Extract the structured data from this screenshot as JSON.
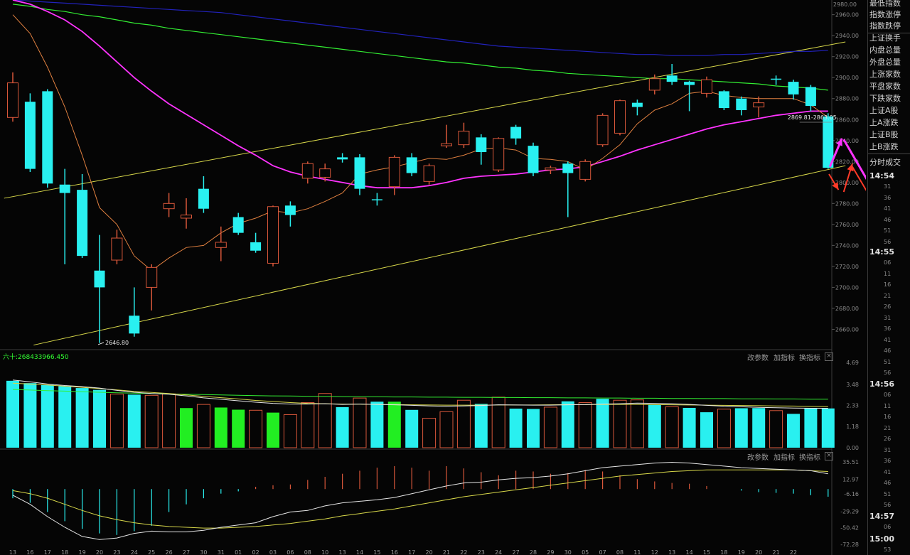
{
  "colors": {
    "up": "#d8573a",
    "down": "#29f0f0",
    "flat": "#29f0f0",
    "ma5": "#e08040",
    "ma10": "#ff33ff",
    "ma60": "#33ee33",
    "ma120": "#2222bb",
    "channel": "#d8d84a",
    "vol_green": "#22ee22",
    "arrow_magenta": "#ff33ff",
    "arrow_red": "#ff3a28"
  },
  "chart_data": [
    {
      "type": "candlestick",
      "panel": "price",
      "ylim": [
        2642,
        2974
      ],
      "y_ticks": [
        2960,
        2940,
        2920,
        2900,
        2880,
        2860,
        2840,
        2820,
        2800,
        2780,
        2760,
        2740,
        2720,
        2700,
        2680,
        2660
      ],
      "y_tick_labels": [
        "2960.00",
        "2940.00",
        "2920.00",
        "2900.00",
        "2880.00",
        "2860.00",
        "2840.00",
        "2820.00",
        "2800.00",
        "2780.00",
        "2760.00",
        "2740.00",
        "2720.00",
        "2700.00",
        "2680.00",
        "2660.00"
      ],
      "top_label": "2980.00",
      "x_labels": [
        "13",
        "16",
        "17",
        "18",
        "19",
        "20",
        "23",
        "24",
        "25",
        "26",
        "27",
        "30",
        "31",
        "01",
        "02",
        "03",
        "06",
        "08",
        "10",
        "13",
        "14",
        "15",
        "16",
        "17",
        "20",
        "21",
        "22",
        "23",
        "24",
        "27",
        "28",
        "29",
        "30",
        "05",
        "07",
        "08",
        "11",
        "12",
        "13",
        "14",
        "15",
        "18",
        "19",
        "20",
        "21",
        "22"
      ],
      "candles": [
        {
          "o": 2862,
          "c": 2895,
          "h": 2905,
          "l": 2858
        },
        {
          "o": 2877,
          "c": 2813,
          "h": 2885,
          "l": 2810
        },
        {
          "o": 2887,
          "c": 2799,
          "h": 2889,
          "l": 2795
        },
        {
          "o": 2798,
          "c": 2790,
          "h": 2813,
          "l": 2722
        },
        {
          "o": 2793,
          "c": 2730,
          "h": 2808,
          "l": 2728
        },
        {
          "o": 2716,
          "c": 2700,
          "h": 2750,
          "l": 2647
        },
        {
          "o": 2726,
          "c": 2747,
          "h": 2755,
          "l": 2722
        },
        {
          "o": 2673,
          "c": 2656,
          "h": 2700,
          "l": 2653
        },
        {
          "o": 2700,
          "c": 2719,
          "h": 2722,
          "l": 2678
        },
        {
          "o": 2775,
          "c": 2780,
          "h": 2790,
          "l": 2767
        },
        {
          "o": 2766,
          "c": 2769,
          "h": 2785,
          "l": 2756
        },
        {
          "o": 2794,
          "c": 2775,
          "h": 2806,
          "l": 2771
        },
        {
          "o": 2738,
          "c": 2743,
          "h": 2758,
          "l": 2725
        },
        {
          "o": 2767,
          "c": 2752,
          "h": 2771,
          "l": 2750
        },
        {
          "o": 2743,
          "c": 2735,
          "h": 2752,
          "l": 2733
        },
        {
          "o": 2723,
          "c": 2777,
          "h": 2778,
          "l": 2720
        },
        {
          "o": 2778,
          "c": 2769,
          "h": 2782,
          "l": 2758
        },
        {
          "o": 2804,
          "c": 2818,
          "h": 2820,
          "l": 2799
        },
        {
          "o": 2805,
          "c": 2813,
          "h": 2818,
          "l": 2801
        },
        {
          "o": 2824,
          "c": 2822,
          "h": 2828,
          "l": 2819
        },
        {
          "o": 2824,
          "c": 2794,
          "h": 2827,
          "l": 2788
        },
        {
          "o": 2784,
          "c": 2783,
          "h": 2790,
          "l": 2778
        },
        {
          "o": 2796,
          "c": 2824,
          "h": 2826,
          "l": 2788
        },
        {
          "o": 2824,
          "c": 2809,
          "h": 2828,
          "l": 2806
        },
        {
          "o": 2801,
          "c": 2816,
          "h": 2818,
          "l": 2798
        },
        {
          "o": 2835,
          "c": 2837,
          "h": 2855,
          "l": 2833
        },
        {
          "o": 2836,
          "c": 2849,
          "h": 2857,
          "l": 2833
        },
        {
          "o": 2843,
          "c": 2829,
          "h": 2846,
          "l": 2817
        },
        {
          "o": 2812,
          "c": 2842,
          "h": 2843,
          "l": 2810
        },
        {
          "o": 2853,
          "c": 2842,
          "h": 2855,
          "l": 2836
        },
        {
          "o": 2835,
          "c": 2809,
          "h": 2838,
          "l": 2806
        },
        {
          "o": 2812,
          "c": 2814,
          "h": 2816,
          "l": 2808
        },
        {
          "o": 2818,
          "c": 2809,
          "h": 2820,
          "l": 2767
        },
        {
          "o": 2803,
          "c": 2820,
          "h": 2822,
          "l": 2801
        },
        {
          "o": 2836,
          "c": 2864,
          "h": 2866,
          "l": 2834
        },
        {
          "o": 2847,
          "c": 2878,
          "h": 2879,
          "l": 2845
        },
        {
          "o": 2876,
          "c": 2872,
          "h": 2879,
          "l": 2864
        },
        {
          "o": 2888,
          "c": 2899,
          "h": 2903,
          "l": 2884
        },
        {
          "o": 2902,
          "c": 2896,
          "h": 2913,
          "l": 2893
        },
        {
          "o": 2896,
          "c": 2893,
          "h": 2897,
          "l": 2868
        },
        {
          "o": 2885,
          "c": 2898,
          "h": 2901,
          "l": 2881
        },
        {
          "o": 2887,
          "c": 2871,
          "h": 2888,
          "l": 2869
        },
        {
          "o": 2880,
          "c": 2869,
          "h": 2882,
          "l": 2864
        },
        {
          "o": 2872,
          "c": 2876,
          "h": 2882,
          "l": 2862
        },
        {
          "o": 2899,
          "c": 2899,
          "h": 2902,
          "l": 2893
        },
        {
          "o": 2896,
          "c": 2884,
          "h": 2898,
          "l": 2879
        },
        {
          "o": 2891,
          "c": 2873,
          "h": 2893,
          "l": 2868
        },
        {
          "o": 2863,
          "c": 2814,
          "h": 2866,
          "l": 2813
        }
      ],
      "ma5": [
        2960,
        2942,
        2910,
        2872,
        2826,
        2776,
        2760,
        2730,
        2716,
        2728,
        2738,
        2740,
        2752,
        2761,
        2766,
        2773,
        2771,
        2775,
        2782,
        2790,
        2808,
        2812,
        2815,
        2819,
        2823,
        2822,
        2826,
        2832,
        2833,
        2831,
        2823,
        2822,
        2820,
        2812,
        2823,
        2836,
        2856,
        2869,
        2875,
        2885,
        2887,
        2883,
        2881,
        2880,
        2880,
        2880,
        2874,
        2862
      ],
      "ma10": [
        2974,
        2970,
        2963,
        2955,
        2944,
        2930,
        2915,
        2900,
        2887,
        2875,
        2865,
        2855,
        2845,
        2835,
        2826,
        2816,
        2810,
        2806,
        2803,
        2800,
        2797,
        2795,
        2795,
        2795,
        2797,
        2800,
        2804,
        2806,
        2807,
        2808,
        2810,
        2812,
        2813,
        2815,
        2820,
        2825,
        2831,
        2836,
        2841,
        2846,
        2851,
        2855,
        2858,
        2861,
        2864,
        2866,
        2868,
        2868
      ],
      "ma60": [
        2970,
        2968,
        2965,
        2963,
        2960,
        2958,
        2955,
        2952,
        2950,
        2947,
        2945,
        2943,
        2941,
        2939,
        2937,
        2935,
        2933,
        2931,
        2929,
        2927,
        2925,
        2923,
        2921,
        2919,
        2917,
        2915,
        2914,
        2912,
        2910,
        2909,
        2907,
        2906,
        2904,
        2903,
        2902,
        2901,
        2900,
        2899,
        2899,
        2898,
        2897,
        2896,
        2895,
        2894,
        2892,
        2891,
        2890,
        2888
      ],
      "ma120": [
        2974,
        2973,
        2972,
        2971,
        2970,
        2969,
        2968,
        2967,
        2966,
        2965,
        2964,
        2963,
        2962,
        2960,
        2958,
        2956,
        2954,
        2952,
        2950,
        2948,
        2946,
        2944,
        2942,
        2940,
        2938,
        2936,
        2934,
        2932,
        2930,
        2929,
        2928,
        2927,
        2926,
        2925,
        2924,
        2923,
        2922,
        2922,
        2921,
        2921,
        2921,
        2922,
        2922,
        2923,
        2924,
        2925,
        2925,
        2926
      ],
      "channel_upper": [
        [
          -0.5,
          2785
        ],
        [
          48,
          2934
        ]
      ],
      "channel_lower": [
        [
          1.2,
          2645
        ],
        [
          48,
          2816
        ]
      ],
      "low_marker": {
        "index": 5,
        "value": 2646.8,
        "label": "2646.80"
      },
      "high_marker": {
        "index": 47,
        "label": "2869.81-2863.05"
      },
      "arrows_magenta": [
        [
          [
            47.1,
            2815
          ],
          [
            47.8,
            2842
          ]
        ],
        [
          [
            47.9,
            2841
          ],
          [
            49.9,
            2784
          ]
        ]
      ],
      "arrows_red": [
        [
          [
            47.05,
            2808
          ],
          [
            47.6,
            2793
          ]
        ],
        [
          [
            47.9,
            2791
          ],
          [
            48.4,
            2818
          ]
        ],
        [
          [
            48.4,
            2815
          ],
          [
            50.0,
            2770
          ]
        ]
      ]
    },
    {
      "type": "bar",
      "panel": "volume",
      "header": "六十:268433966.450",
      "ylim": [
        0,
        4.69
      ],
      "y_tick_labels": [
        "4.69",
        "3.48",
        "2.33",
        "1.18",
        "0.00"
      ],
      "values": [
        3.68,
        3.55,
        3.45,
        3.38,
        3.28,
        3.18,
        2.95,
        2.92,
        2.88,
        2.96,
        2.18,
        2.38,
        2.21,
        2.09,
        2.06,
        1.93,
        1.82,
        2.48,
        2.98,
        2.23,
        2.73,
        2.53,
        2.53,
        2.08,
        1.62,
        1.98,
        2.61,
        2.41,
        2.78,
        2.15,
        2.13,
        2.23,
        2.55,
        2.48,
        2.69,
        2.61,
        2.63,
        2.37,
        2.25,
        2.19,
        1.95,
        2.12,
        2.17,
        2.18,
        2.04,
        1.86,
        2.18,
        2.16
      ],
      "colors": [
        "down",
        "down",
        "down",
        "down",
        "down",
        "down",
        "up",
        "down",
        "up",
        "up",
        "green",
        "up",
        "green",
        "green",
        "up",
        "green",
        "up",
        "up",
        "up",
        "down",
        "up",
        "down",
        "green",
        "down",
        "up",
        "up",
        "up",
        "down",
        "up",
        "down",
        "down",
        "up",
        "down",
        "up",
        "down",
        "up",
        "up",
        "down",
        "up",
        "down",
        "down",
        "up",
        "down",
        "down",
        "up",
        "down",
        "down",
        "down"
      ],
      "lines": {
        "white": [
          3.72,
          3.62,
          3.5,
          3.42,
          3.36,
          3.28,
          3.15,
          3.05,
          2.98,
          2.94,
          2.85,
          2.74,
          2.66,
          2.58,
          2.5,
          2.44,
          2.4,
          2.4,
          2.42,
          2.38,
          2.4,
          2.38,
          2.36,
          2.33,
          2.3,
          2.28,
          2.3,
          2.32,
          2.36,
          2.35,
          2.34,
          2.34,
          2.36,
          2.37,
          2.4,
          2.42,
          2.45,
          2.44,
          2.42,
          2.38,
          2.33,
          2.28,
          2.25,
          2.22,
          2.2,
          2.18,
          2.17,
          2.17
        ],
        "yellow": [
          3.55,
          3.5,
          3.45,
          3.38,
          3.32,
          3.25,
          3.18,
          3.1,
          3.04,
          2.98,
          2.9,
          2.82,
          2.75,
          2.68,
          2.6,
          2.54,
          2.48,
          2.44,
          2.42,
          2.4,
          2.39,
          2.38,
          2.37,
          2.36,
          2.35,
          2.34,
          2.34,
          2.34,
          2.35,
          2.35,
          2.35,
          2.36,
          2.37,
          2.37,
          2.38,
          2.38,
          2.38,
          2.37,
          2.36,
          2.35,
          2.34,
          2.33,
          2.32,
          2.31,
          2.3,
          2.29,
          2.27,
          2.26
        ],
        "green": [
          3.2,
          3.17,
          3.14,
          3.11,
          3.08,
          3.05,
          3.02,
          3.0,
          2.98,
          2.96,
          2.94,
          2.92,
          2.9,
          2.88,
          2.86,
          2.85,
          2.84,
          2.83,
          2.82,
          2.81,
          2.8,
          2.8,
          2.79,
          2.79,
          2.78,
          2.78,
          2.77,
          2.77,
          2.76,
          2.76,
          2.75,
          2.75,
          2.74,
          2.74,
          2.73,
          2.73,
          2.72,
          2.72,
          2.71,
          2.71,
          2.7,
          2.7,
          2.69,
          2.69,
          2.68,
          2.68,
          2.67,
          2.67
        ]
      }
    },
    {
      "type": "macd",
      "panel": "macd",
      "ylim": [
        -72.28,
        35.51
      ],
      "y_tick_labels": [
        "35.51",
        "12.97",
        "-6.16",
        "-29.29",
        "-50.42",
        "-72.28"
      ],
      "hist": [
        -12,
        -18,
        -30,
        -42,
        -52,
        -58,
        -60,
        -55,
        -48,
        -30,
        -20,
        -12,
        -6,
        -3,
        3,
        5,
        6,
        12,
        16,
        20,
        24,
        28,
        30,
        28,
        24,
        30,
        27,
        22,
        18,
        24,
        23,
        20,
        21,
        25,
        23,
        18,
        13,
        10,
        8,
        7,
        4,
        0,
        -2,
        -4,
        -5,
        -6,
        -8,
        -10
      ],
      "dif": [
        -8,
        -20,
        -36,
        -50,
        -62,
        -66,
        -64,
        -58,
        -55,
        -56,
        -56,
        -54,
        -50,
        -47,
        -44,
        -36,
        -30,
        -28,
        -22,
        -18,
        -16,
        -14,
        -11,
        -6,
        -1,
        4,
        8,
        9,
        12,
        14,
        15,
        17,
        20,
        24,
        28,
        30,
        32,
        34,
        35,
        34,
        32,
        30,
        28,
        27,
        26,
        25,
        24,
        20
      ],
      "dea": [
        -2,
        -6,
        -12,
        -20,
        -28,
        -35,
        -40,
        -44,
        -47,
        -49,
        -50,
        -51,
        -51,
        -50,
        -49,
        -47,
        -45,
        -42,
        -39,
        -35,
        -32,
        -29,
        -26,
        -22,
        -18,
        -14,
        -10,
        -7,
        -4,
        -1,
        2,
        5,
        8,
        11,
        14,
        17,
        19,
        21,
        23,
        24,
        25,
        25,
        25,
        25,
        25,
        25,
        24,
        23
      ]
    }
  ],
  "toolbar": {
    "change_params": "改参数",
    "add_indicator": "加指标",
    "swap_indicator": "换指标",
    "close": "×"
  },
  "side_panel": {
    "items": [
      "最低指数",
      "指数涨停",
      "指数跌停",
      "上证换手",
      "内盘总量",
      "外盘总量",
      "上涨家数",
      "平盘家数",
      "下跌家数",
      "上证A股",
      "上A涨跌",
      "上证B股",
      "上B涨跌",
      "分时成交"
    ],
    "times": [
      "14:54",
      "14:55",
      "14:56",
      "14:57",
      "15:00"
    ],
    "seconds": [
      "31",
      "36",
      "41",
      "46",
      "51",
      "56",
      "06",
      "11",
      "16",
      "21",
      "26",
      "31",
      "36",
      "41",
      "46",
      "51",
      "56",
      "06",
      "11",
      "16",
      "21",
      "26",
      "31",
      "36",
      "41",
      "46",
      "51",
      "56",
      "06",
      "53"
    ]
  }
}
